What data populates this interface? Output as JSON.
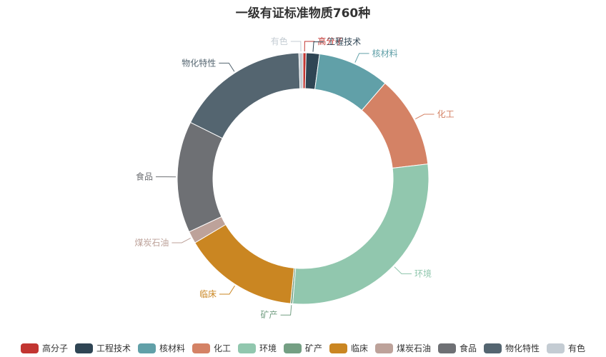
{
  "chart_data": {
    "type": "pie",
    "title": "一级有证标准物质760种",
    "donut": true,
    "legend_position": "bottom",
    "slices": [
      {
        "label": "高分子",
        "value": 3,
        "color": "#c23531"
      },
      {
        "label": "工程技术",
        "value": 13,
        "color": "#2f4554"
      },
      {
        "label": "核材料",
        "value": 70,
        "color": "#61a0a8"
      },
      {
        "label": "化工",
        "value": 90,
        "color": "#d48265"
      },
      {
        "label": "环境",
        "value": 214,
        "color": "#91c7ae"
      },
      {
        "label": "矿产",
        "value": 2,
        "color": "#749f83"
      },
      {
        "label": "临床",
        "value": 113,
        "color": "#ca8622"
      },
      {
        "label": "煤炭石油",
        "value": 12,
        "color": "#bda29a"
      },
      {
        "label": "食品",
        "value": 109,
        "color": "#6e7074"
      },
      {
        "label": "物化特性",
        "value": 130,
        "color": "#546570"
      },
      {
        "label": "有色",
        "value": 4,
        "color": "#c4ccd3"
      }
    ]
  }
}
